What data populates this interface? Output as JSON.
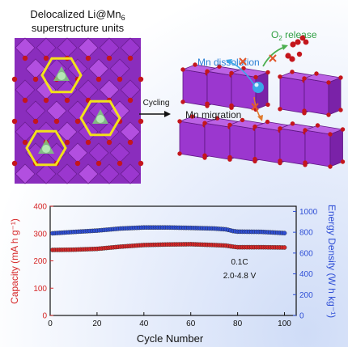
{
  "top": {
    "title_line1": "Delocalized Li@Mn",
    "title_sub1": "6",
    "title_line2": "superstructure units",
    "arrow_label": "Cycling",
    "mn_dissolution": "Mn dissolution",
    "o2_label": "O",
    "o2_sub": "2",
    "o2_suffix": " release",
    "mn_migration": "Mn migration"
  },
  "colors": {
    "capacity": "#d62728",
    "energy": "#2f4fd6",
    "octahedra": "#9b2fc8",
    "oxygen": "#c4161c",
    "li_green": "#7fc97f",
    "ring_yellow": "#f2e21a",
    "mn_blue": "#3aa6e8",
    "o2_green": "#4caf50"
  },
  "chart_data": {
    "type": "scatter",
    "xlabel": "Cycle Number",
    "ylabel_left": "Capacity (mA h g⁻¹)",
    "ylabel_right": "Energy Density (W h kg⁻¹)",
    "xlim": [
      0,
      105
    ],
    "ylim_left": [
      0,
      400
    ],
    "ylim_right": [
      0,
      1050
    ],
    "xticks": [
      "0",
      "20",
      "40",
      "60",
      "80",
      "100"
    ],
    "yticks_left": [
      "0",
      "100",
      "200",
      "300",
      "400"
    ],
    "yticks_right": [
      "0",
      "200",
      "400",
      "600",
      "800",
      "1000"
    ],
    "annotation_rate": "0.1C",
    "annotation_voltage": "2.0-4.8 V",
    "series": [
      {
        "axis": "left",
        "x": [
          1,
          10,
          20,
          30,
          40,
          50,
          60,
          70,
          75,
          78,
          80,
          90,
          100
        ],
        "y": [
          240,
          241,
          244,
          252,
          258,
          260,
          261,
          258,
          256,
          252,
          250,
          250,
          249
        ]
      },
      {
        "axis": "right",
        "x": [
          1,
          10,
          20,
          30,
          40,
          50,
          60,
          70,
          75,
          78,
          80,
          90,
          100
        ],
        "y": [
          790,
          803,
          816,
          836,
          846,
          846,
          842,
          836,
          828,
          812,
          806,
          804,
          792
        ]
      }
    ]
  }
}
